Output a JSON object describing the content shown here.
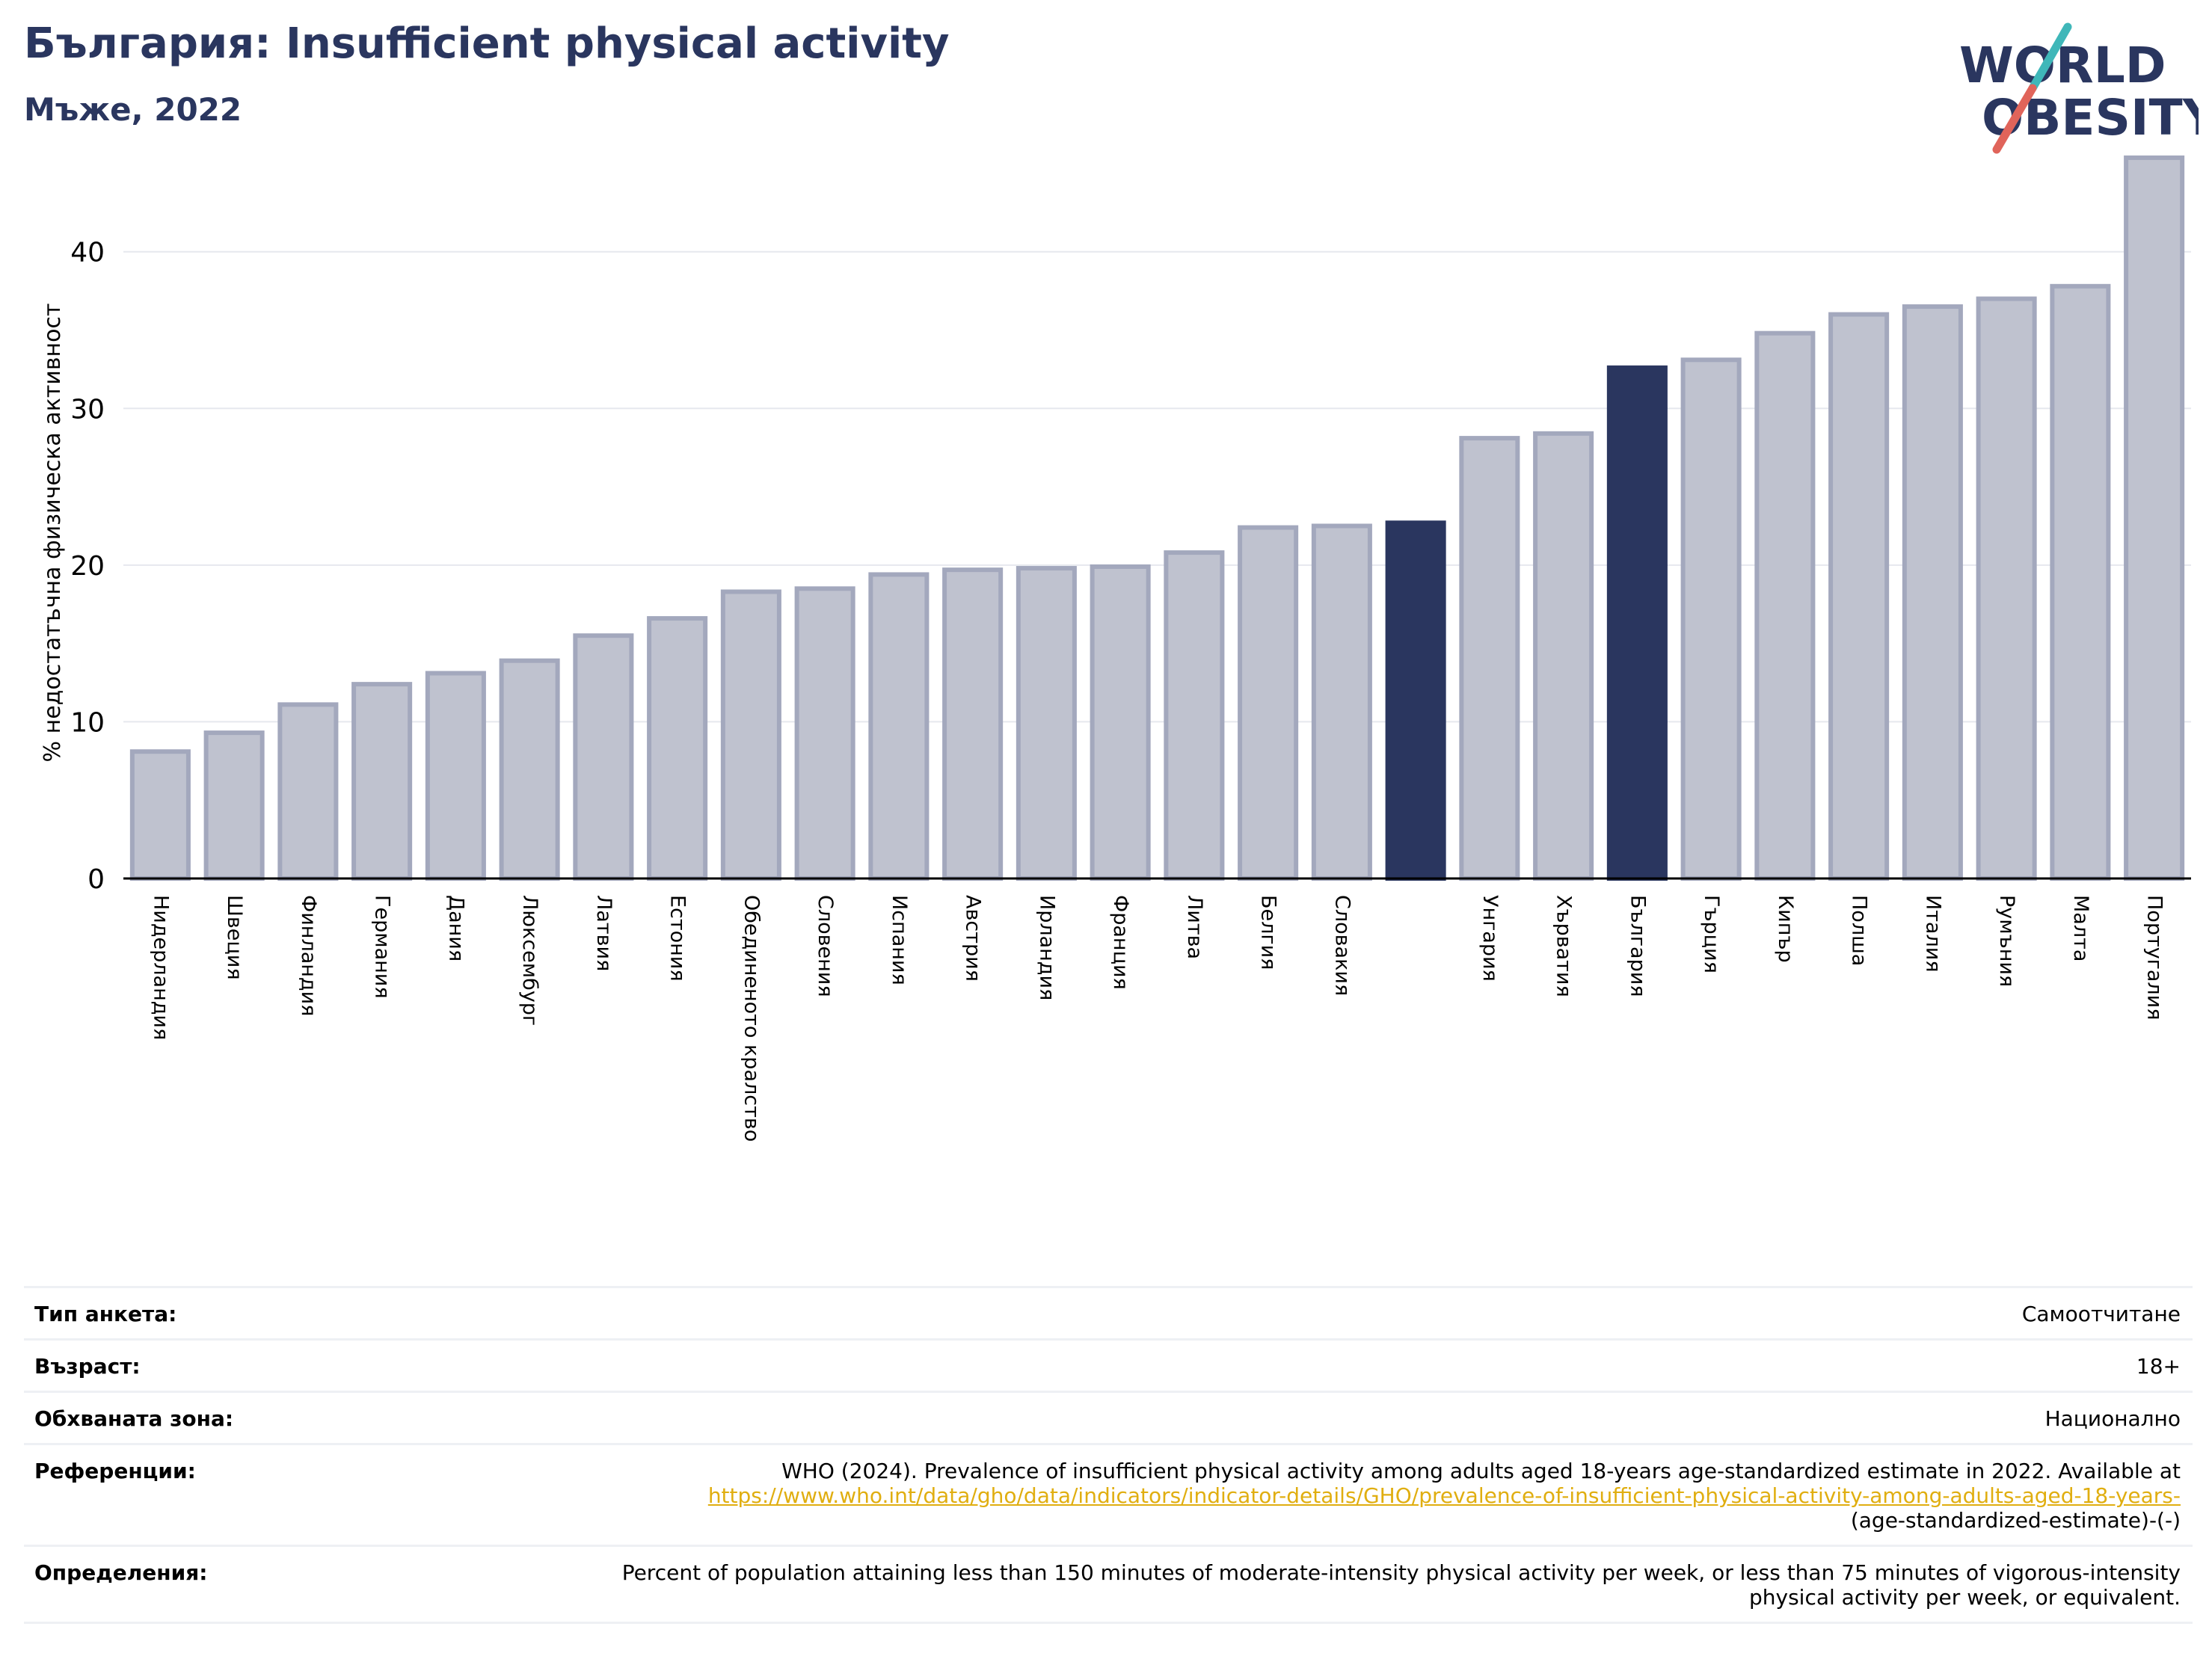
{
  "header": {
    "title": "България: Insufficient physical activity",
    "subtitle": "Мъже, 2022"
  },
  "logo": {
    "line1": "WORLD",
    "line2": "OBESITY"
  },
  "colors": {
    "highlight": "#2a365f",
    "bar_fill": "#bfc2cf",
    "bar_edge": "#a3a8bd",
    "title": "#2a365f",
    "link": "#e0ae10",
    "logo_slash_teal": "#3fb7b9",
    "logo_slash_red": "#e0645a"
  },
  "chart_data": {
    "type": "bar",
    "ylabel": "% недостатъчна физическа активност",
    "xlabel": "",
    "ylim": [
      0,
      47
    ],
    "yticks": [
      0,
      10,
      20,
      30,
      40
    ],
    "grid": true,
    "categories": [
      "Нидерландия",
      "Швеция",
      "Финландия",
      "Германия",
      "Дания",
      "Люксембург",
      "Латвия",
      "Естония",
      "Обединеното кралство",
      "Словения",
      "Испания",
      "Австрия",
      "Ирландия",
      "Франция",
      "Литва",
      "Белгия",
      "Словакия",
      "",
      "Унгария",
      "Хърватия",
      "България",
      "Гърция",
      "Кипър",
      "Полша",
      "Италия",
      "Румъния",
      "Малта",
      "Португалия"
    ],
    "values": [
      8.1,
      9.3,
      11.1,
      12.4,
      13.1,
      13.9,
      15.5,
      16.6,
      18.3,
      18.5,
      19.4,
      19.7,
      19.8,
      19.9,
      20.8,
      22.4,
      22.5,
      22.7,
      28.1,
      28.4,
      32.6,
      33.1,
      34.8,
      36.0,
      36.5,
      37.0,
      37.8,
      46.0
    ],
    "highlighted": [
      "",
      "България"
    ]
  },
  "info": {
    "rows": [
      {
        "label": "Тип анкета:",
        "value": "Самоотчитане"
      },
      {
        "label": "Възраст:",
        "value": "18+"
      },
      {
        "label": "Обхваната зона:",
        "value": "Национално"
      },
      {
        "label": "Референции:",
        "value": "WHO (2024). Prevalence of insufficient physical activity among adults aged 18-years age-standardized estimate in 2022. Available at",
        "link": "https://www.who.int/data/gho/data/indicators/indicator-details/GHO/prevalence-of-insufficient-physical-activity-among-adults-aged-18-years-",
        "tail": "(age-standardized-estimate)-(-)"
      },
      {
        "label": "Определения:",
        "value": "Percent of population attaining less than 150 minutes of moderate-intensity physical activity per week, or less than 75 minutes of vigorous-intensity physical activity per week, or equivalent."
      }
    ]
  }
}
